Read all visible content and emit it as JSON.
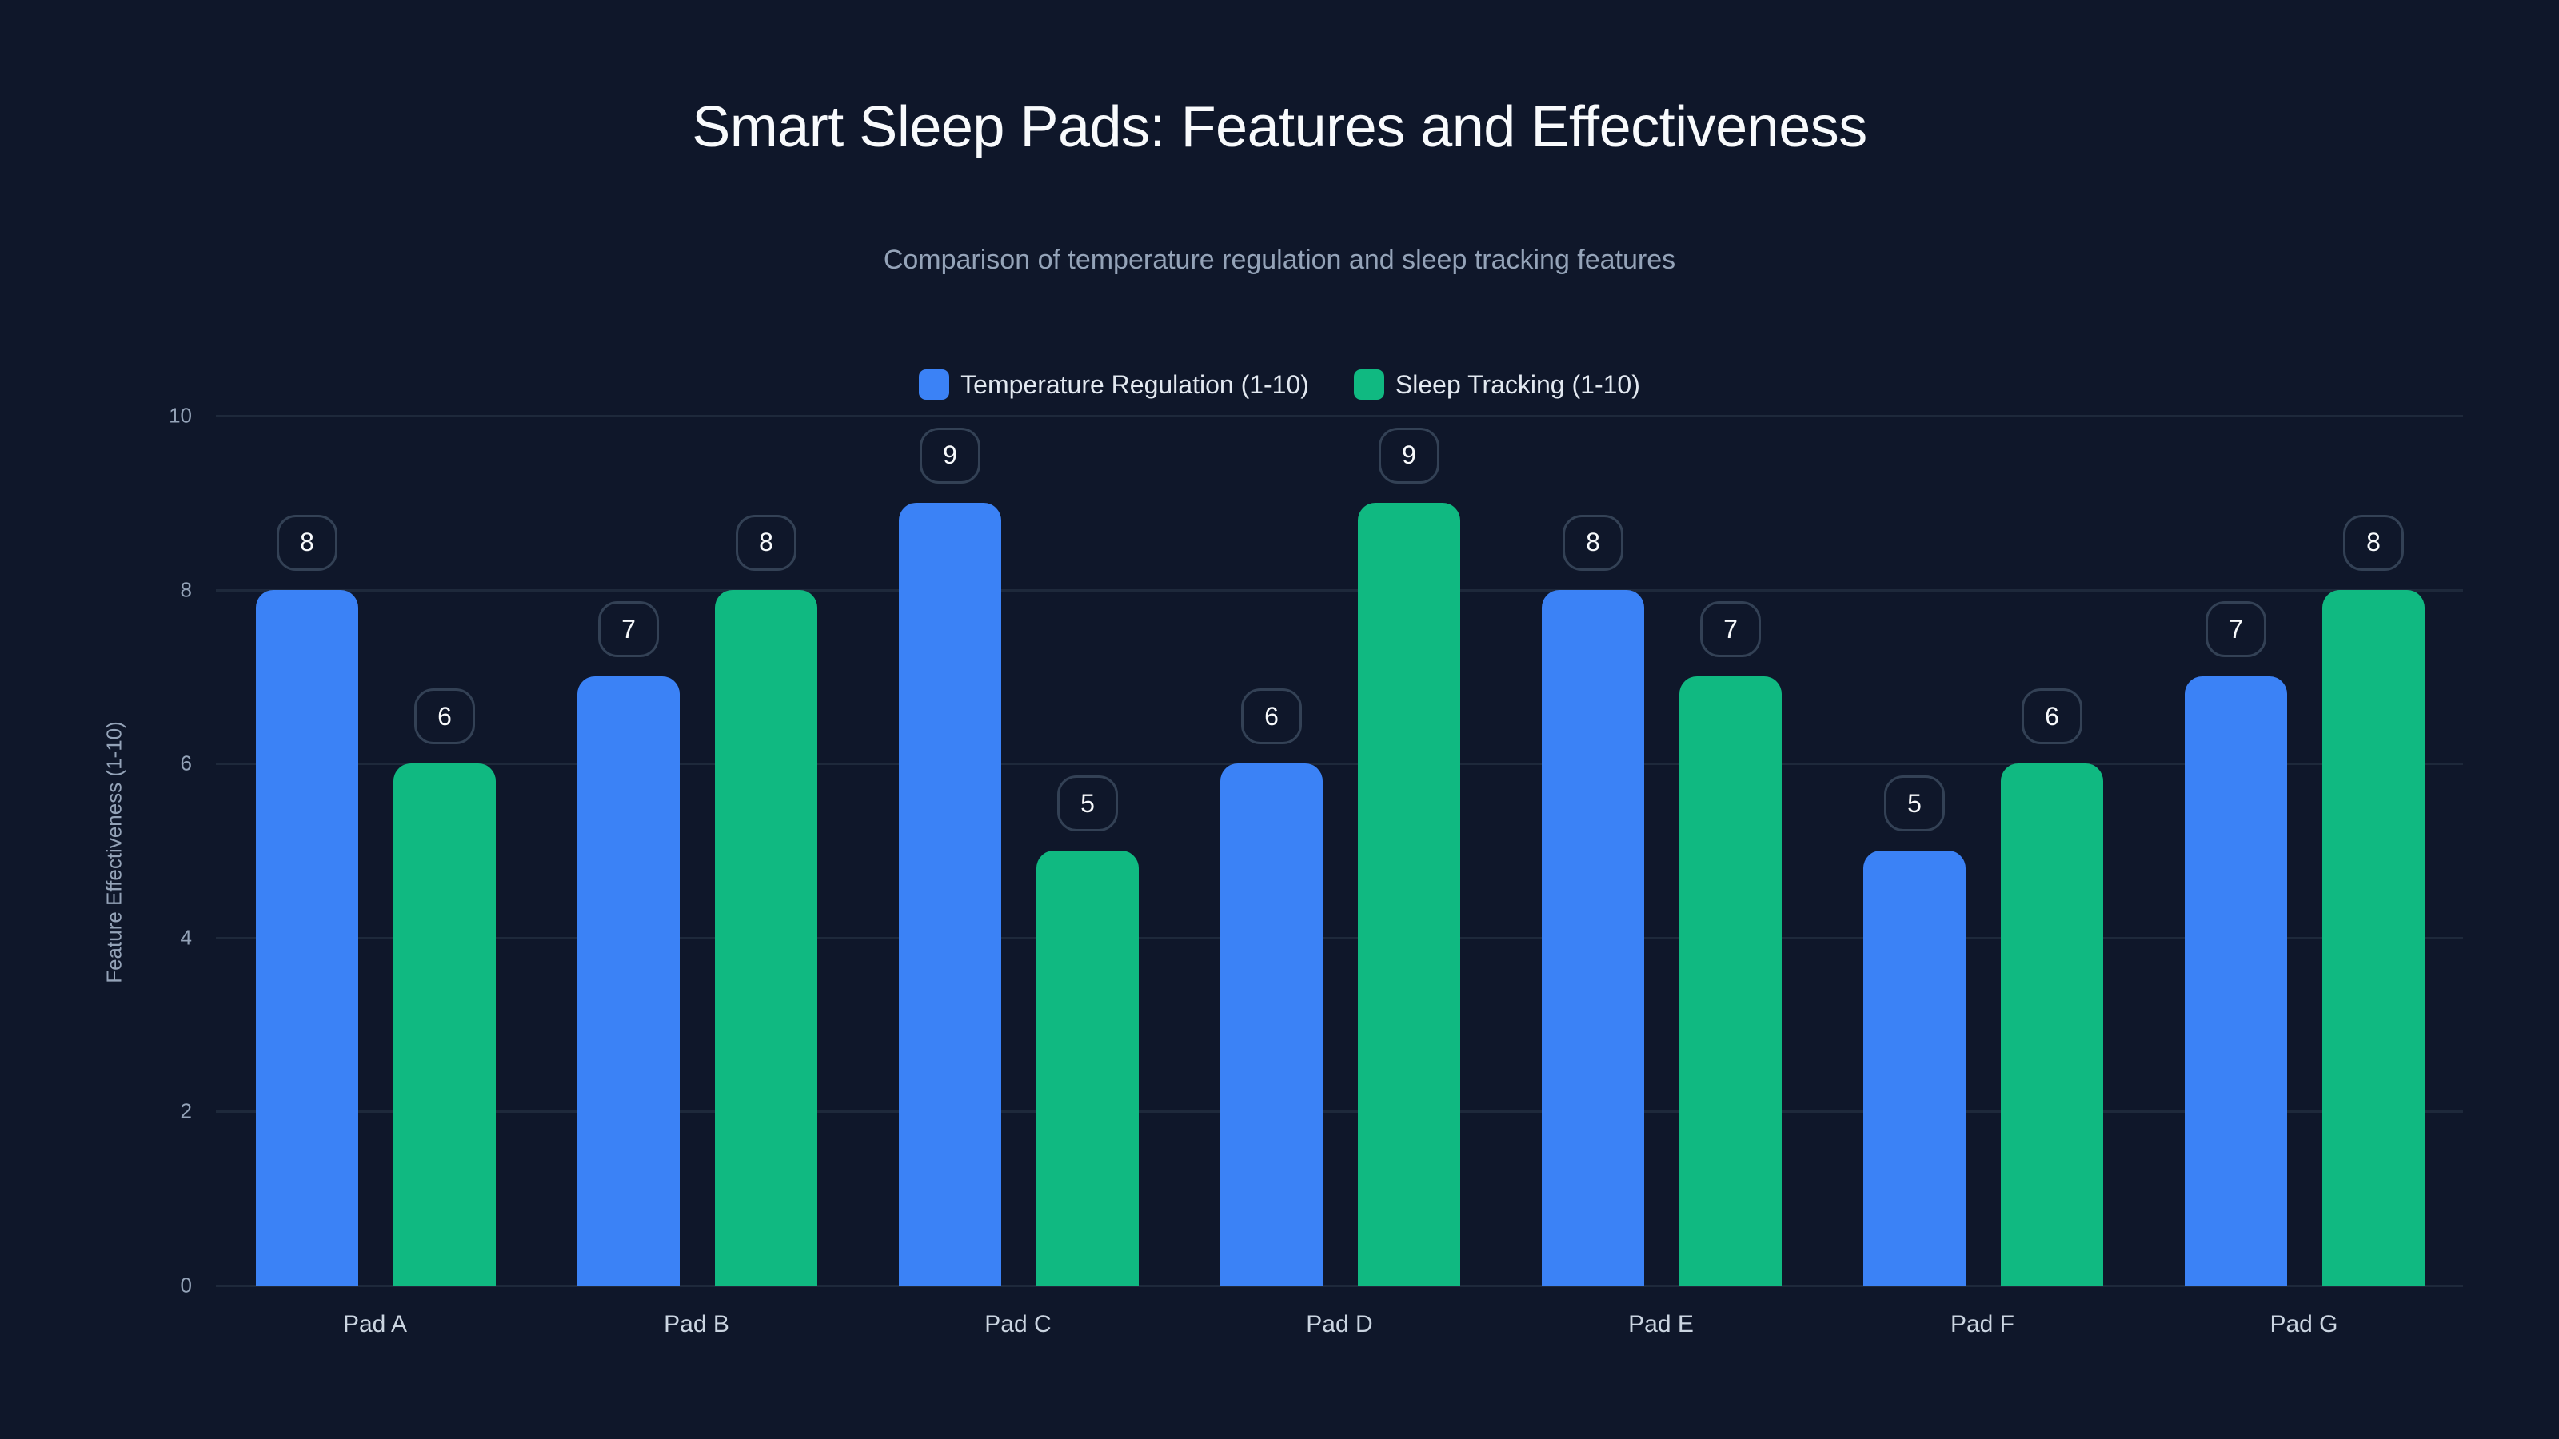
{
  "title": "Smart Sleep Pads: Features and Effectiveness",
  "subtitle": "Comparison of temperature regulation and sleep tracking features",
  "colors": {
    "background": "#0f172a",
    "temperature": "#3b82f6",
    "sleep": "#10b981",
    "grid": "#1e293b",
    "pill_border": "#334155"
  },
  "legend": [
    {
      "label": "Temperature Regulation (1-10)",
      "color": "#3b82f6"
    },
    {
      "label": "Sleep Tracking (1-10)",
      "color": "#10b981"
    }
  ],
  "y_axis": {
    "label": "Feature Effectiveness (1-10)",
    "ticks": [
      "0",
      "2",
      "4",
      "6",
      "8",
      "10"
    ]
  },
  "chart_data": {
    "type": "bar",
    "title": "Smart Sleep Pads: Features and Effectiveness",
    "subtitle": "Comparison of temperature regulation and sleep tracking features",
    "categories": [
      "Pad A",
      "Pad B",
      "Pad C",
      "Pad D",
      "Pad E",
      "Pad F",
      "Pad G"
    ],
    "series": [
      {
        "name": "Temperature Regulation (1-10)",
        "color": "#3b82f6",
        "values": [
          8,
          7,
          9,
          6,
          8,
          5,
          7
        ]
      },
      {
        "name": "Sleep Tracking (1-10)",
        "color": "#10b981",
        "values": [
          6,
          8,
          5,
          9,
          7,
          6,
          8
        ]
      }
    ],
    "xlabel": "",
    "ylabel": "Feature Effectiveness (1-10)",
    "ylim": [
      0,
      10
    ],
    "yticks": [
      0,
      2,
      4,
      6,
      8,
      10
    ],
    "grid": true,
    "legend_position": "top",
    "data_labels": true
  }
}
